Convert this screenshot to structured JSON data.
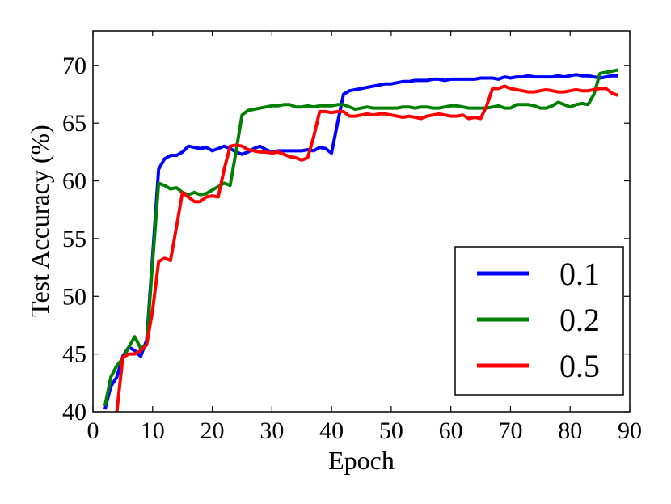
{
  "chart_data": {
    "type": "line",
    "xlabel": "Epoch",
    "ylabel": "Test Accuracy (%)",
    "xlim": [
      0,
      90
    ],
    "ylim": [
      40,
      73
    ],
    "xticks": [
      0,
      10,
      20,
      30,
      40,
      50,
      60,
      70,
      80,
      90
    ],
    "yticks": [
      40,
      45,
      50,
      55,
      60,
      65,
      70
    ],
    "grid": false,
    "legend_position": "bottom-right",
    "series": [
      {
        "name": "0.1",
        "color": "#0000ff",
        "x": [
          2,
          3,
          4,
          5,
          6,
          7,
          8,
          9,
          10,
          11,
          12,
          13,
          14,
          15,
          16,
          17,
          18,
          19,
          20,
          21,
          22,
          23,
          24,
          25,
          26,
          27,
          28,
          29,
          30,
          31,
          32,
          33,
          34,
          35,
          36,
          37,
          38,
          39,
          40,
          41,
          42,
          43,
          44,
          45,
          46,
          47,
          48,
          49,
          50,
          51,
          52,
          53,
          54,
          55,
          56,
          57,
          58,
          59,
          60,
          61,
          62,
          63,
          64,
          65,
          66,
          67,
          68,
          69,
          70,
          71,
          72,
          73,
          74,
          75,
          76,
          77,
          78,
          79,
          80,
          81,
          82,
          83,
          84,
          85,
          86,
          87,
          88
        ],
        "y": [
          40.2,
          42.2,
          43.0,
          44.8,
          45.6,
          45.3,
          44.8,
          46.2,
          53.5,
          61.0,
          61.9,
          62.2,
          62.2,
          62.5,
          63.0,
          62.9,
          62.8,
          62.9,
          62.6,
          62.8,
          63.0,
          62.8,
          62.5,
          62.3,
          62.5,
          62.8,
          63.0,
          62.7,
          62.5,
          62.6,
          62.6,
          62.6,
          62.6,
          62.6,
          62.7,
          62.6,
          62.9,
          62.8,
          62.4,
          65.0,
          67.5,
          67.8,
          67.9,
          68.0,
          68.1,
          68.2,
          68.3,
          68.4,
          68.4,
          68.5,
          68.6,
          68.6,
          68.7,
          68.7,
          68.7,
          68.8,
          68.8,
          68.7,
          68.8,
          68.8,
          68.8,
          68.8,
          68.8,
          68.9,
          68.9,
          68.9,
          68.8,
          69.0,
          68.9,
          69.0,
          69.0,
          69.1,
          69.0,
          69.0,
          69.0,
          69.0,
          69.1,
          69.0,
          69.1,
          69.2,
          69.1,
          69.1,
          69.0,
          68.9,
          69.0,
          69.1,
          69.1
        ]
      },
      {
        "name": "0.2",
        "color": "#008000",
        "x": [
          2,
          3,
          4,
          5,
          6,
          7,
          8,
          9,
          10,
          11,
          12,
          13,
          14,
          15,
          16,
          17,
          18,
          19,
          20,
          21,
          22,
          23,
          24,
          25,
          26,
          27,
          28,
          29,
          30,
          31,
          32,
          33,
          34,
          35,
          36,
          37,
          38,
          39,
          40,
          41,
          42,
          43,
          44,
          45,
          46,
          47,
          48,
          49,
          50,
          51,
          52,
          53,
          54,
          55,
          56,
          57,
          58,
          59,
          60,
          61,
          62,
          63,
          64,
          65,
          66,
          67,
          68,
          69,
          70,
          71,
          72,
          73,
          74,
          75,
          76,
          77,
          78,
          79,
          80,
          81,
          82,
          83,
          84,
          85,
          86,
          87,
          88
        ],
        "y": [
          40.5,
          43.0,
          44.0,
          44.6,
          45.6,
          46.5,
          45.5,
          45.8,
          53.0,
          59.8,
          59.6,
          59.3,
          59.4,
          59.0,
          58.8,
          59.0,
          58.8,
          58.9,
          59.2,
          59.5,
          59.8,
          59.6,
          62.6,
          65.7,
          66.1,
          66.2,
          66.3,
          66.4,
          66.5,
          66.5,
          66.6,
          66.6,
          66.4,
          66.4,
          66.5,
          66.4,
          66.5,
          66.5,
          66.5,
          66.6,
          66.6,
          66.4,
          66.2,
          66.3,
          66.4,
          66.3,
          66.3,
          66.3,
          66.3,
          66.3,
          66.4,
          66.4,
          66.3,
          66.4,
          66.4,
          66.3,
          66.3,
          66.4,
          66.5,
          66.5,
          66.4,
          66.3,
          66.3,
          66.3,
          66.3,
          66.4,
          66.5,
          66.3,
          66.3,
          66.6,
          66.6,
          66.6,
          66.5,
          66.3,
          66.3,
          66.5,
          66.8,
          66.6,
          66.4,
          66.6,
          66.7,
          66.6,
          67.5,
          69.3,
          69.4,
          69.5,
          69.6
        ]
      },
      {
        "name": "0.5",
        "color": "#ff0000",
        "x": [
          2,
          3,
          4,
          5,
          6,
          7,
          8,
          9,
          10,
          11,
          12,
          13,
          14,
          15,
          16,
          17,
          18,
          19,
          20,
          21,
          22,
          23,
          24,
          25,
          26,
          27,
          28,
          29,
          30,
          31,
          32,
          33,
          34,
          35,
          36,
          37,
          38,
          39,
          40,
          41,
          42,
          43,
          44,
          45,
          46,
          47,
          48,
          49,
          50,
          51,
          52,
          53,
          54,
          55,
          56,
          57,
          58,
          59,
          60,
          61,
          62,
          63,
          64,
          65,
          66,
          67,
          68,
          69,
          70,
          71,
          72,
          73,
          74,
          75,
          76,
          77,
          78,
          79,
          80,
          81,
          82,
          83,
          84,
          85,
          86,
          87,
          88
        ],
        "y": [
          36.0,
          38.5,
          40.0,
          44.7,
          45.0,
          45.0,
          45.3,
          45.8,
          48.8,
          53.0,
          53.3,
          53.1,
          56.0,
          59.0,
          58.6,
          58.2,
          58.2,
          58.6,
          58.7,
          58.6,
          61.0,
          63.0,
          63.1,
          63.0,
          62.7,
          62.6,
          62.5,
          62.5,
          62.4,
          62.5,
          62.3,
          62.1,
          62.0,
          61.8,
          62.0,
          63.8,
          66.0,
          66.0,
          65.9,
          66.0,
          66.0,
          65.6,
          65.6,
          65.7,
          65.8,
          65.7,
          65.8,
          65.8,
          65.7,
          65.6,
          65.5,
          65.6,
          65.5,
          65.4,
          65.6,
          65.7,
          65.8,
          65.7,
          65.6,
          65.6,
          65.7,
          65.4,
          65.5,
          65.4,
          66.5,
          68.0,
          68.0,
          68.2,
          68.0,
          67.9,
          67.8,
          67.7,
          67.7,
          67.8,
          67.9,
          67.8,
          67.7,
          67.7,
          67.8,
          67.9,
          67.8,
          67.8,
          67.9,
          68.0,
          68.0,
          67.6,
          67.4
        ]
      }
    ]
  }
}
